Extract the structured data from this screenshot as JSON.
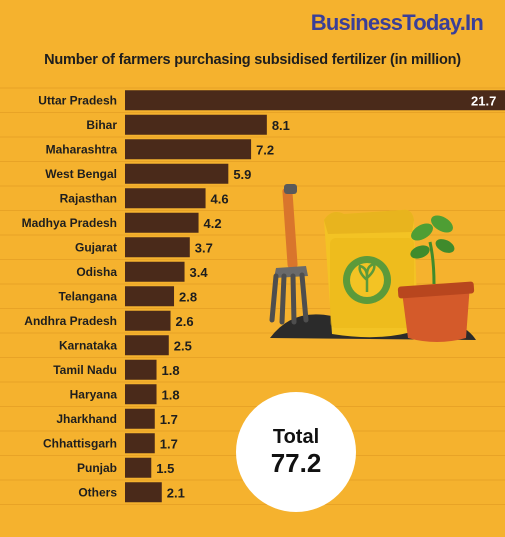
{
  "brand": {
    "name": "BusinessToday.In"
  },
  "total": {
    "label": "Total",
    "value": "77.2"
  },
  "colors": {
    "background": "#F5B22E",
    "bar": "#4A2A1A",
    "brand": "#3A3F98",
    "gridline": "#E8A326"
  },
  "illustration": {
    "icon": "fertilizer-bag-garden-fork-plant-illustration"
  },
  "chart_data": {
    "type": "bar",
    "orientation": "horizontal",
    "title": "Number of farmers purchasing subsidised fertilizer (in million)",
    "categories": [
      "Uttar Pradesh",
      "Bihar",
      "Maharashtra",
      "West Bengal",
      "Rajasthan",
      "Madhya Pradesh",
      "Gujarat",
      "Odisha",
      "Telangana",
      "Andhra Pradesh",
      "Karnataka",
      "Tamil Nadu",
      "Haryana",
      "Jharkhand",
      "Chhattisgarh",
      "Punjab",
      "Others"
    ],
    "values": [
      21.7,
      8.1,
      7.2,
      5.9,
      4.6,
      4.2,
      3.7,
      3.4,
      2.8,
      2.6,
      2.5,
      1.8,
      1.8,
      1.7,
      1.7,
      1.5,
      2.1
    ],
    "value_labels": [
      "21.7",
      "8.1",
      "7.2",
      "5.9",
      "4.6",
      "4.2",
      "3.7",
      "3.4",
      "2.8",
      "2.6",
      "2.5",
      "1.8",
      "1.8",
      "1.7",
      "1.7",
      "1.5",
      "2.1"
    ],
    "xlabel": "",
    "ylabel": "",
    "grid": true
  }
}
